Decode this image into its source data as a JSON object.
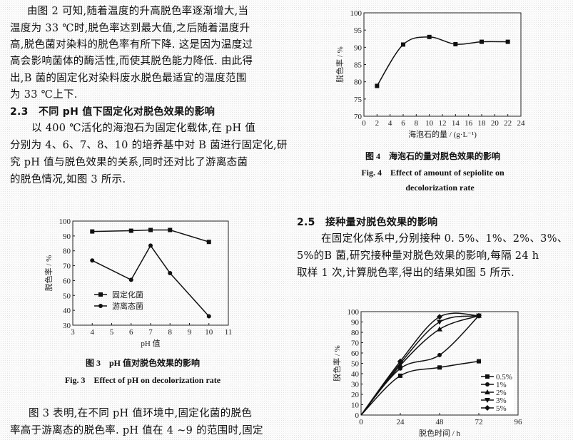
{
  "left_column": {
    "para1": [
      "由图 2 可知,随着温度的升高脱色率逐渐增大,当",
      "温度为 33 ℃时,脱色率达到最大值,之后随着温度升",
      "高,脱色菌对染料的脱色率有所下降. 这是因为温度过",
      "高会影响菌体的酶活性,而使其脱色能力降低. 由此得",
      "出,B 菌的固定化对染料废水脱色最适宜的温度范围",
      "为 33 ℃上下."
    ],
    "heading_2_3": "2.3　不同 pH 值下固定化对脱色效果的影响",
    "para2": [
      "以 400 ℃活化的海泡石为固定化载体,在 pH 值",
      "分别为 4、6、7、8、10 的培养基中对 B 菌进行固定化,研",
      "究 pH 值与脱色效果的关系,同时还对比了游离态菌",
      "的脱色情况,如图 3 所示."
    ],
    "fig3_caption_cn": "图 3　pH 值对脱色效果的影响",
    "fig3_caption_en": "Fig. 3　Effect of pH on decolorization rate",
    "para3": [
      "图 3 表明,在不同 pH 值环境中,固定化菌的脱色",
      "率高于游离态的脱色率. pH 值在 4 ~9 的范围时,固定"
    ]
  },
  "right_column": {
    "fig4_caption_cn": "图 4　海泡石的量对脱色效果的影响",
    "fig4_caption_en_1": "Fig. 4　Effect of amount of sepiolite on",
    "fig4_caption_en_2": "decolorization rate",
    "heading_2_5": "2.5　接种量对脱色效果的影响",
    "para": [
      "在固定化体系中,分别接种 0. 5%、1%、2%、3%、",
      "5%的B 菌,研究接种量对脱色效果的影响,每隔 24 h",
      "取样 1 次,计算脱色率,得出的结果如图 5 所示."
    ]
  },
  "chart_data": [
    {
      "id": "fig3",
      "type": "line",
      "xlabel": "pH 值",
      "ylabel": "脱色率 / %",
      "xlim": [
        3,
        11
      ],
      "ylim": [
        30,
        100
      ],
      "xticks": [
        3,
        4,
        5,
        6,
        7,
        8,
        9,
        10,
        11
      ],
      "yticks": [
        30,
        40,
        50,
        60,
        70,
        80,
        90,
        100
      ],
      "legend": "center-left",
      "series": [
        {
          "name": "固定化菌",
          "marker": "square",
          "x": [
            4,
            6,
            7,
            8,
            10
          ],
          "y": [
            93,
            93.5,
            94,
            94,
            86
          ]
        },
        {
          "name": "游离态菌",
          "marker": "circle",
          "x": [
            4,
            6,
            7,
            8,
            10
          ],
          "y": [
            73.5,
            60.5,
            83.5,
            65,
            36
          ]
        }
      ]
    },
    {
      "id": "fig4",
      "type": "line",
      "xlabel": "海泡石的量 / (g·L⁻¹)",
      "ylabel": "脱色率 / %",
      "xlim": [
        0,
        24
      ],
      "ylim": [
        70,
        100
      ],
      "xticks": [
        0,
        2,
        4,
        6,
        8,
        10,
        12,
        14,
        16,
        18,
        20,
        22,
        24
      ],
      "yticks": [
        70,
        75,
        80,
        85,
        90,
        95,
        100
      ],
      "series": [
        {
          "marker": "square",
          "x": [
            2,
            6,
            10,
            14,
            18,
            22
          ],
          "y": [
            78.8,
            90.8,
            93,
            90.9,
            91.6,
            91.6
          ]
        }
      ]
    },
    {
      "id": "fig5",
      "type": "line",
      "xlabel": "脱色时间 / h",
      "ylabel": "脱色率 / %",
      "xlim": [
        0,
        96
      ],
      "ylim": [
        0,
        100
      ],
      "xticks": [
        0,
        24,
        48,
        72,
        96
      ],
      "yticks": [
        0,
        10,
        20,
        30,
        40,
        50,
        60,
        70,
        80,
        90,
        100
      ],
      "legend": "bottom-right",
      "series": [
        {
          "name": "0.5%",
          "marker": "square",
          "x": [
            0,
            24,
            48,
            72
          ],
          "y": [
            0,
            38,
            46,
            52
          ]
        },
        {
          "name": "1%",
          "marker": "circle",
          "x": [
            0,
            24,
            48,
            72
          ],
          "y": [
            0,
            45,
            58,
            96
          ]
        },
        {
          "name": "2%",
          "marker": "triangle-up",
          "x": [
            0,
            24,
            48,
            72
          ],
          "y": [
            0,
            48,
            83,
            96
          ]
        },
        {
          "name": "3%",
          "marker": "triangle-down",
          "x": [
            0,
            24,
            48,
            72
          ],
          "y": [
            0,
            50,
            90,
            96
          ]
        },
        {
          "name": "5%",
          "marker": "diamond",
          "x": [
            0,
            24,
            48,
            72
          ],
          "y": [
            0,
            52,
            95,
            96
          ]
        }
      ]
    }
  ]
}
